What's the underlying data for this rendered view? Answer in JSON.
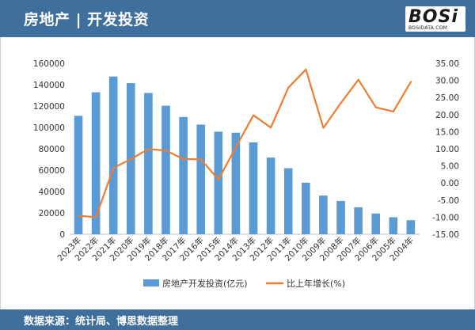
{
  "header": {
    "title": "房地产 | 开发投资"
  },
  "logo": {
    "word": "BOSi",
    "sub": "BOSIDATA.COM"
  },
  "footer": {
    "source": "数据来源：统计局、博思数据整理"
  },
  "colors": {
    "bar": "#5b9bd5",
    "line": "#ed7d31",
    "header": "#3f6f9c"
  },
  "chart_data": {
    "type": "bar",
    "title": "",
    "categories": [
      "2023年",
      "2022年",
      "2021年",
      "2020年",
      "2019年",
      "2018年",
      "2017年",
      "2016年",
      "2015年",
      "2014年",
      "2013年",
      "2012年",
      "2011年",
      "2010年",
      "2009年",
      "2008年",
      "2007年",
      "2006年",
      "2005年",
      "2004年"
    ],
    "series": [
      {
        "name": "房地产开发投资(亿元)",
        "type": "bar",
        "axis": "left",
        "values": [
          110913,
          132895,
          147602,
          141443,
          132194,
          120264,
          109799,
          102581,
          95979,
          95036,
          86013,
          71804,
          61796,
          48267,
          36242,
          31203,
          25289,
          19423,
          15909,
          13158
        ]
      },
      {
        "name": "比上年增长(%)",
        "type": "line",
        "axis": "right",
        "values": [
          -9.6,
          -10.0,
          4.4,
          7.0,
          9.9,
          9.5,
          7.0,
          6.9,
          1.0,
          10.5,
          19.8,
          16.2,
          27.9,
          33.2,
          16.1,
          23.4,
          30.2,
          22.1,
          20.9,
          29.6
        ]
      }
    ],
    "y_left": {
      "min": 0,
      "max": 160000,
      "ticks": [
        "0",
        "20000",
        "40000",
        "60000",
        "80000",
        "100000",
        "120000",
        "140000",
        "160000"
      ]
    },
    "y_right": {
      "min": -15,
      "max": 35,
      "ticks": [
        "-15.00",
        "-10.00",
        "-5.00",
        "0.00",
        "5.00",
        "10.00",
        "15.00",
        "20.00",
        "25.00",
        "30.00",
        "35.00"
      ]
    },
    "legend_position": "bottom"
  }
}
